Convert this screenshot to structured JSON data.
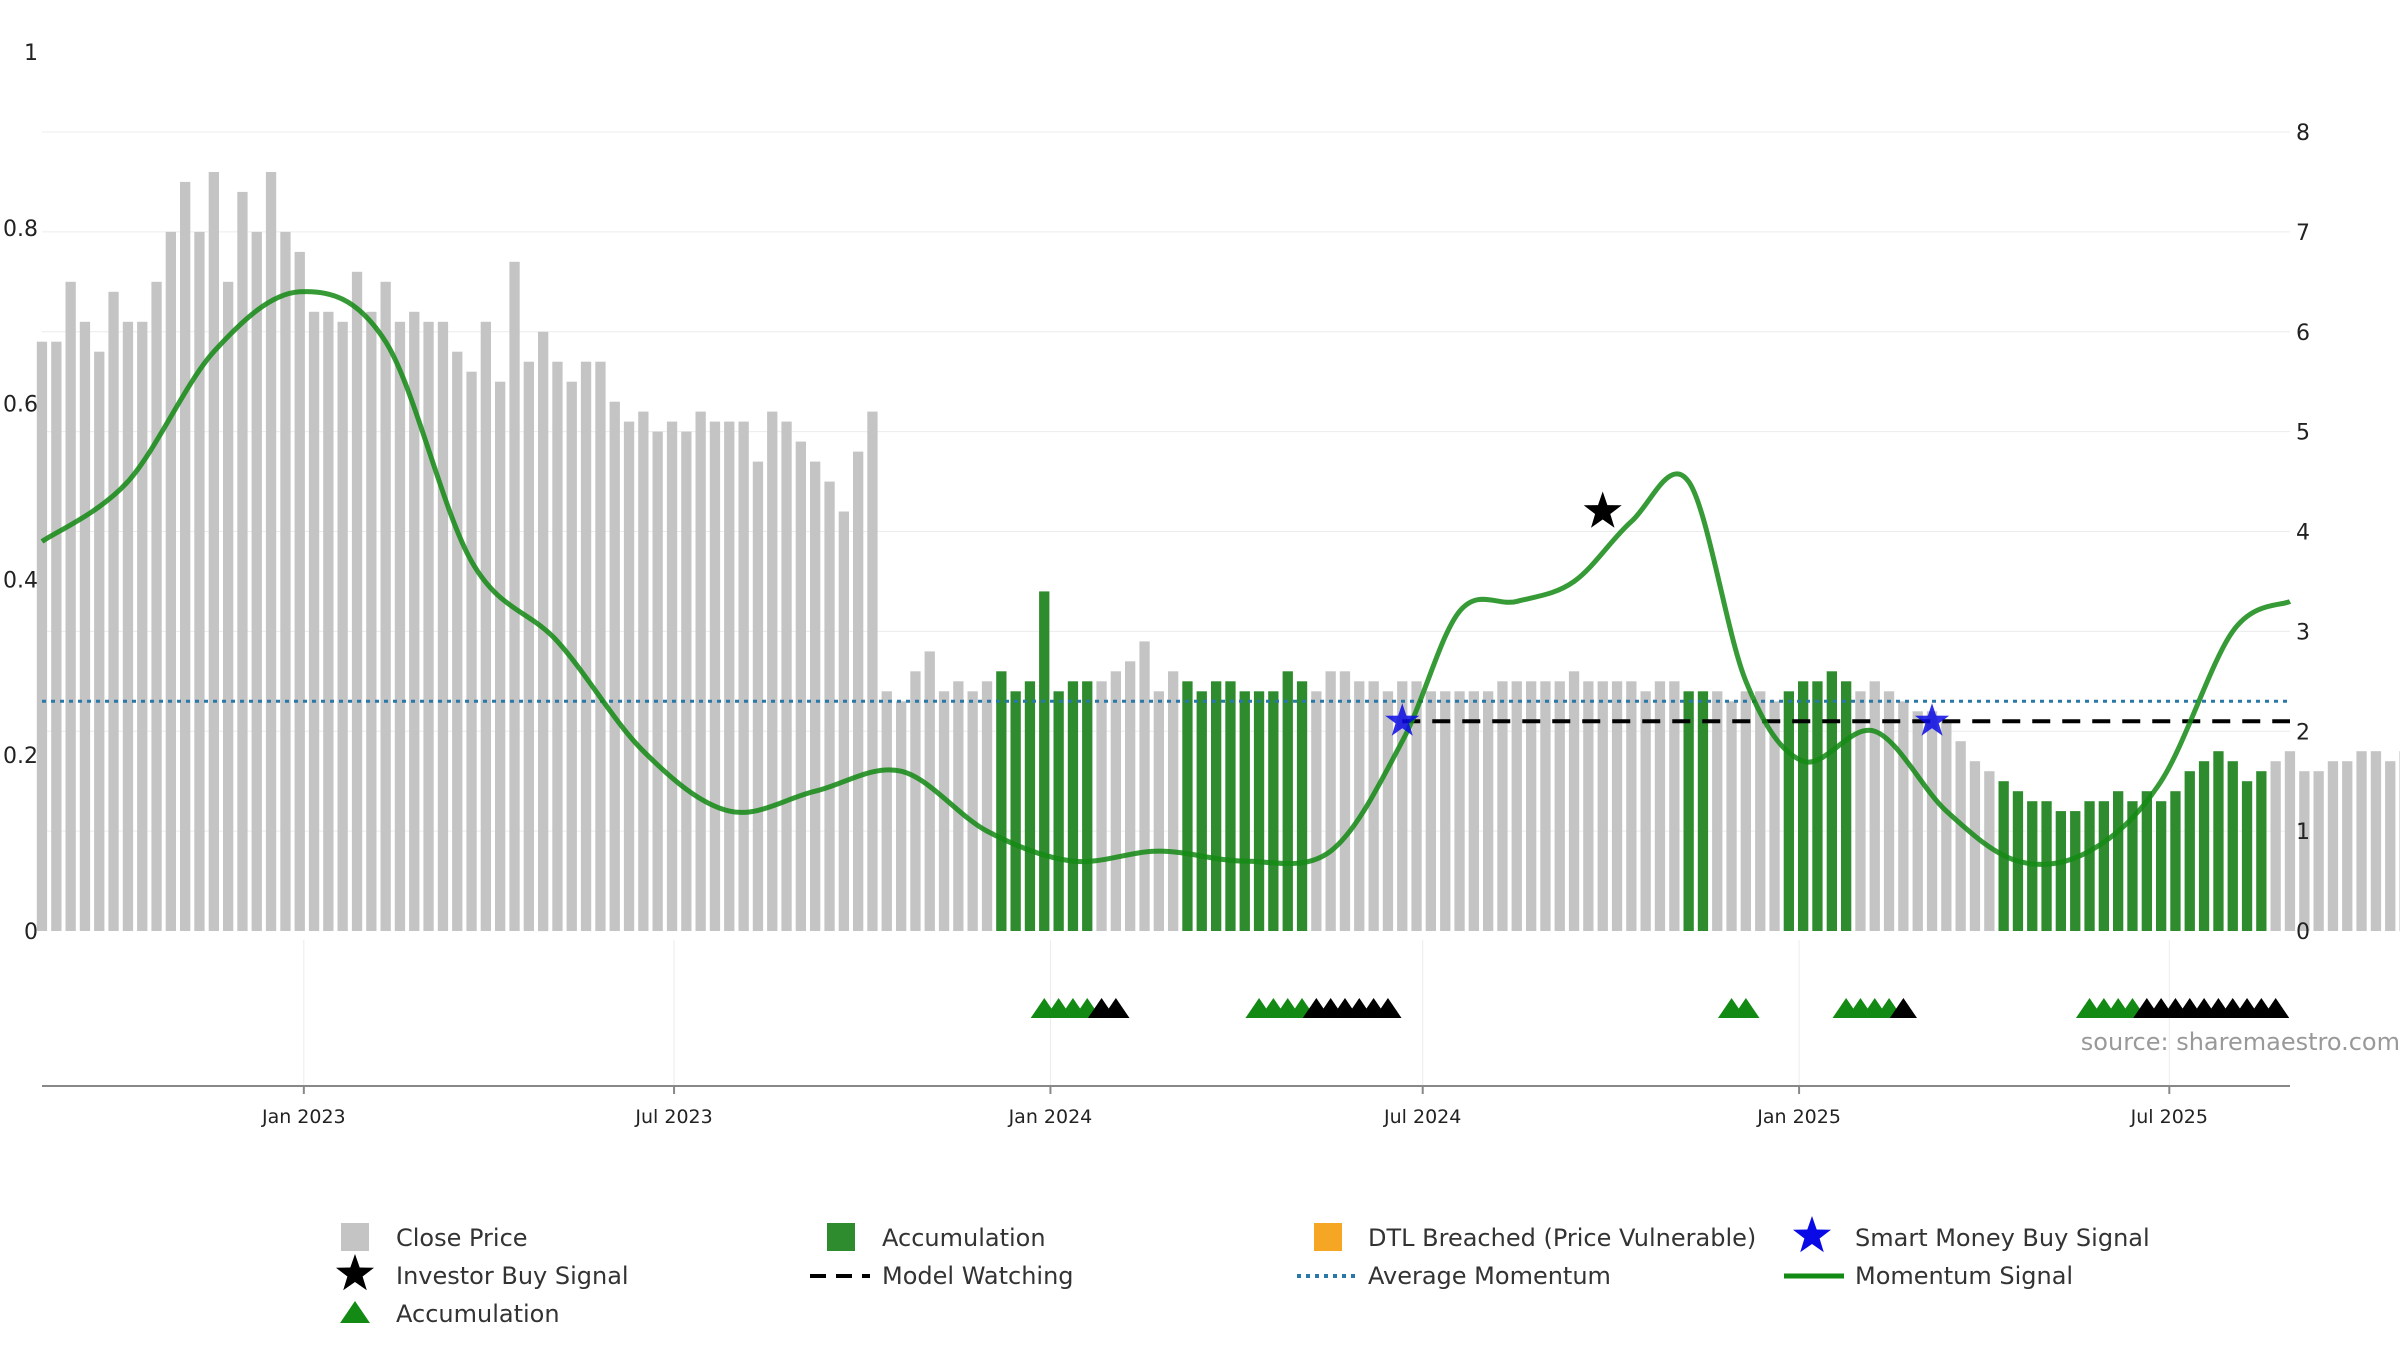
{
  "source_text": "source: sharemaestro.com",
  "legend": {
    "close_price": "Close Price",
    "accumulation_bar": "Accumulation",
    "dtl_breached": "DTL Breached (Price Vulnerable)",
    "smart_money": "Smart Money Buy Signal",
    "investor_buy": "Investor Buy Signal",
    "model_watching": "Model Watching",
    "average_momentum": "Average Momentum",
    "momentum_signal": "Momentum Signal",
    "accumulation_marker": "Accumulation"
  },
  "colors": {
    "close_price": "#c4c4c4",
    "accumulation": "#2e8b2e",
    "dtl_breached": "#f5a623",
    "smart_money": "#0a0ae6",
    "investor_buy": "#000000",
    "model_watching": "#000000",
    "average_momentum": "#2a78a8",
    "momentum_signal": "#138a13",
    "accumulation_marker": "#138a13"
  },
  "chart_data": {
    "type": "bar",
    "left_axis": {
      "ticks": [
        "0",
        "0.2",
        "0.4",
        "0.6",
        "0.8",
        "1"
      ],
      "range": [
        0,
        1
      ]
    },
    "right_axis": {
      "ticks": [
        "0",
        "1",
        "2",
        "3",
        "4",
        "5",
        "6",
        "7",
        "8"
      ],
      "range": [
        0,
        8
      ]
    },
    "x_axis": {
      "ticks": [
        "Jan 2023",
        "Jul 2023",
        "Jan 2024",
        "Jul 2024",
        "Jan 2025",
        "Jul 2025"
      ],
      "tick_dates": [
        "2023-01-01",
        "2023-07-01",
        "2024-01-01",
        "2024-07-01",
        "2025-01-01",
        "2025-07-01"
      ],
      "range": [
        "2022-08-26",
        "2025-08-29"
      ]
    },
    "bar_start_date": "2022-08-26",
    "bar_interval": "1 week",
    "close_price": [
      5.9,
      5.9,
      6.5,
      6.1,
      5.8,
      6.4,
      6.1,
      6.1,
      6.5,
      7.0,
      7.5,
      7.0,
      7.6,
      6.5,
      7.4,
      7.0,
      7.6,
      7.0,
      6.8,
      6.2,
      6.2,
      6.1,
      6.6,
      6.2,
      6.5,
      6.1,
      6.2,
      6.1,
      6.1,
      5.8,
      5.6,
      6.1,
      5.5,
      6.7,
      5.7,
      6.0,
      5.7,
      5.5,
      5.7,
      5.7,
      5.3,
      5.1,
      5.2,
      5.0,
      5.1,
      5.0,
      5.2,
      5.1,
      5.1,
      5.1,
      4.7,
      5.2,
      5.1,
      4.9,
      4.7,
      4.5,
      4.2,
      4.8,
      5.2,
      2.4,
      2.3,
      2.6,
      2.8,
      2.4,
      2.5,
      2.4,
      2.5,
      2.6,
      2.4,
      2.5,
      3.4,
      2.4,
      2.5,
      2.5,
      2.5,
      2.6,
      2.7,
      2.9,
      2.4,
      2.6,
      2.5,
      2.4,
      2.5,
      2.5,
      2.4,
      2.4,
      2.4,
      2.6,
      2.5,
      2.4,
      2.6,
      2.6,
      2.5,
      2.5,
      2.4,
      2.5,
      2.5,
      2.4,
      2.4,
      2.4,
      2.4,
      2.4,
      2.5,
      2.5,
      2.5,
      2.5,
      2.5,
      2.6,
      2.5,
      2.5,
      2.5,
      2.5,
      2.4,
      2.5,
      2.5,
      2.4,
      2.4,
      2.4,
      2.3,
      2.4,
      2.4,
      2.3,
      2.4,
      2.5,
      2.5,
      2.6,
      2.5,
      2.4,
      2.5,
      2.4,
      2.3,
      2.2,
      2.2,
      2.1,
      1.9,
      1.7,
      1.6,
      1.5,
      1.4,
      1.3,
      1.3,
      1.2,
      1.2,
      1.3,
      1.3,
      1.4,
      1.3,
      1.4,
      1.3,
      1.4,
      1.6,
      1.7,
      1.8,
      1.7,
      1.5,
      1.6,
      1.7,
      1.8,
      1.6,
      1.6,
      1.7,
      1.7,
      1.8,
      1.8,
      1.7,
      1.8,
      1.8,
      1.8,
      1.8,
      1.9
    ],
    "accumulation_bar_indices": [
      67,
      68,
      69,
      70,
      71,
      72,
      73,
      80,
      81,
      82,
      83,
      84,
      85,
      86,
      87,
      88,
      115,
      116,
      122,
      123,
      124,
      125,
      126,
      137,
      138,
      139,
      140,
      141,
      142,
      143,
      144,
      145,
      146,
      147,
      148,
      149,
      150,
      151,
      152,
      153,
      154,
      155
    ],
    "momentum_signal": {
      "x": [
        "2022-08-26",
        "2022-10-07",
        "2022-11-18",
        "2022-12-30",
        "2023-02-10",
        "2023-03-24",
        "2023-05-05",
        "2023-06-16",
        "2023-07-28",
        "2023-09-08",
        "2023-10-20",
        "2023-12-01",
        "2024-01-12",
        "2024-02-23",
        "2024-04-05",
        "2024-05-17",
        "2024-06-21",
        "2024-07-19",
        "2024-08-16",
        "2024-09-13",
        "2024-10-11",
        "2024-11-08",
        "2024-12-06",
        "2025-01-03",
        "2025-02-07",
        "2025-03-14",
        "2025-04-18",
        "2025-05-23",
        "2025-06-27",
        "2025-08-01",
        "2025-08-29"
      ],
      "values": [
        3.9,
        4.5,
        5.8,
        6.4,
        5.9,
        3.7,
        2.9,
        1.8,
        1.2,
        1.4,
        1.6,
        1.0,
        0.7,
        0.8,
        0.7,
        0.8,
        1.9,
        3.2,
        3.3,
        3.5,
        4.1,
        4.5,
        2.5,
        1.7,
        2.0,
        1.2,
        0.7,
        0.8,
        1.5,
        3.0,
        3.3
      ]
    },
    "average_momentum": 2.3,
    "model_watching": {
      "from": "2024-06-21",
      "to": "2025-08-29",
      "value": 2.1
    },
    "investor_buy_signals": [
      {
        "x": "2024-09-27",
        "value": 4.2
      }
    ],
    "smart_money_buy_signals": [
      {
        "x": "2024-06-21",
        "value": 2.1
      },
      {
        "x": "2025-03-07",
        "value": 2.1
      }
    ],
    "accumulation_markers": {
      "green": [
        "2023-12-29",
        "2024-01-05",
        "2024-01-12",
        "2024-01-19",
        "2024-04-12",
        "2024-04-19",
        "2024-04-26",
        "2024-05-03",
        "2024-11-29",
        "2024-12-06",
        "2025-01-24",
        "2025-01-31",
        "2025-02-07",
        "2025-02-14",
        "2025-05-23",
        "2025-05-30",
        "2025-06-06",
        "2025-06-13"
      ],
      "black": [
        "2024-01-26",
        "2024-02-02",
        "2024-05-10",
        "2024-05-17",
        "2024-05-24",
        "2024-05-31",
        "2024-06-07",
        "2024-06-14",
        "2025-02-21",
        "2025-06-20",
        "2025-06-27",
        "2025-07-04",
        "2025-07-11",
        "2025-07-18",
        "2025-07-25",
        "2025-08-01",
        "2025-08-08",
        "2025-08-15",
        "2025-08-22"
      ]
    }
  }
}
